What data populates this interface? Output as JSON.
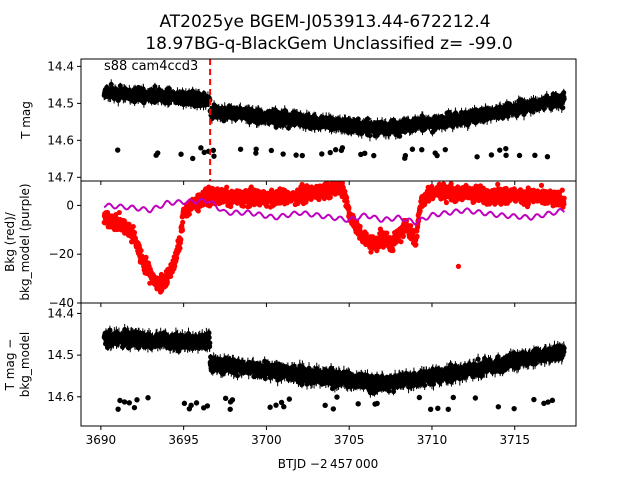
{
  "figure": {
    "title_line1": "AT2025ye  BGEM-J053913.44-672212.4",
    "title_line2": "18.97BG-q-BlackGem Unclassified z= -99.0",
    "xlabel": "BTJD −2 457 000",
    "xlim": [
      3688.8,
      3718.7
    ],
    "xticks": [
      "3690",
      "3695",
      "3700",
      "3705",
      "3710",
      "3715"
    ],
    "colors": {
      "lc": "#000000",
      "bkg": "#ff0000",
      "bkg_model": "#bf00bf",
      "marker_line": "#ff0000"
    }
  },
  "chart_data": [
    {
      "type": "scatter",
      "panel": "top",
      "ylabel": "T mag",
      "ylim": [
        14.71,
        14.38
      ],
      "yticks": [
        "14.4",
        "14.5",
        "14.6",
        "14.7"
      ],
      "annotation": "s88 cam4ccd3",
      "vertical_marker_x": 3696.6,
      "series": [
        {
          "segments": [
            {
              "x": [
                3690.2,
                3696.6
              ],
              "y": [
                14.47,
                14.49
              ]
            },
            {
              "x": [
                3696.6,
                3707.0
              ],
              "y": [
                14.52,
                14.57
              ]
            },
            {
              "x": [
                3707.0,
                3712.0
              ],
              "y": [
                14.57,
                14.54
              ]
            },
            {
              "x": [
                3712.0,
                3718.0
              ],
              "y": [
                14.54,
                14.49
              ]
            }
          ],
          "scatter": 0.035,
          "outliers": 14.65
        }
      ]
    },
    {
      "type": "scatter",
      "panel": "middle",
      "ylabel": "Bkg (red)/\nbkg_model (purple)",
      "ylim": [
        -40,
        10
      ],
      "yticks": [
        "−40",
        "−20",
        "0"
      ],
      "series": [
        {
          "name": "Bkg",
          "color": "#ff0000",
          "knots": [
            [
              3690.2,
              -5
            ],
            [
              3691.0,
              -7
            ],
            [
              3691.5,
              -9
            ],
            [
              3692.0,
              -13
            ],
            [
              3692.5,
              -22
            ],
            [
              3693.0,
              -28
            ],
            [
              3693.5,
              -33
            ],
            [
              3694.0,
              -30
            ],
            [
              3694.4,
              -24
            ],
            [
              3694.8,
              -15
            ],
            [
              3695.0,
              -2
            ],
            [
              3696.5,
              4
            ],
            [
              3698.0,
              3
            ],
            [
              3700.0,
              3
            ],
            [
              3702.0,
              4
            ],
            [
              3704.0,
              7
            ],
            [
              3704.6,
              8
            ],
            [
              3705.0,
              -3
            ],
            [
              3705.5,
              -10
            ],
            [
              3706.0,
              -14
            ],
            [
              3706.5,
              -16
            ],
            [
              3707.0,
              -13
            ],
            [
              3707.5,
              -16
            ],
            [
              3708.0,
              -12
            ],
            [
              3708.5,
              -8
            ],
            [
              3709.0,
              -15
            ],
            [
              3709.3,
              1
            ],
            [
              3710.0,
              6
            ],
            [
              3712.0,
              5
            ],
            [
              3714.0,
              4
            ],
            [
              3716.0,
              4
            ],
            [
              3718.0,
              2
            ]
          ],
          "isolated_point": [
            3711.6,
            -25
          ]
        },
        {
          "name": "bkg_model",
          "color": "#bf00bf",
          "knots": [
            [
              3690.2,
              0
            ],
            [
              3692.0,
              -1
            ],
            [
              3693.0,
              -2
            ],
            [
              3694.0,
              1
            ],
            [
              3696.5,
              2
            ],
            [
              3697.5,
              -3
            ],
            [
              3699.0,
              -3
            ],
            [
              3700.5,
              -5
            ],
            [
              3702.0,
              -3
            ],
            [
              3704.0,
              -5
            ],
            [
              3705.0,
              -6
            ],
            [
              3706.0,
              -4
            ],
            [
              3707.0,
              -6
            ],
            [
              3708.0,
              -5
            ],
            [
              3709.0,
              -7
            ],
            [
              3710.0,
              -4
            ],
            [
              3712.0,
              -2
            ],
            [
              3714.0,
              -4
            ],
            [
              3716.0,
              -5
            ],
            [
              3718.0,
              -2
            ]
          ]
        }
      ]
    },
    {
      "type": "scatter",
      "panel": "bottom",
      "ylabel": "T mag −\nbkg_model",
      "ylim": [
        14.67,
        14.375
      ],
      "yticks": [
        "14.4",
        "14.5",
        "14.6"
      ],
      "series": [
        {
          "segments": [
            {
              "x": [
                3690.2,
                3696.6
              ],
              "y": [
                14.46,
                14.47
              ]
            },
            {
              "x": [
                3696.6,
                3707.0
              ],
              "y": [
                14.52,
                14.57
              ]
            },
            {
              "x": [
                3707.0,
                3712.0
              ],
              "y": [
                14.57,
                14.54
              ]
            },
            {
              "x": [
                3712.0,
                3718.0
              ],
              "y": [
                14.54,
                14.49
              ]
            }
          ],
          "scatter": 0.035,
          "outliers": 14.63
        }
      ]
    }
  ]
}
